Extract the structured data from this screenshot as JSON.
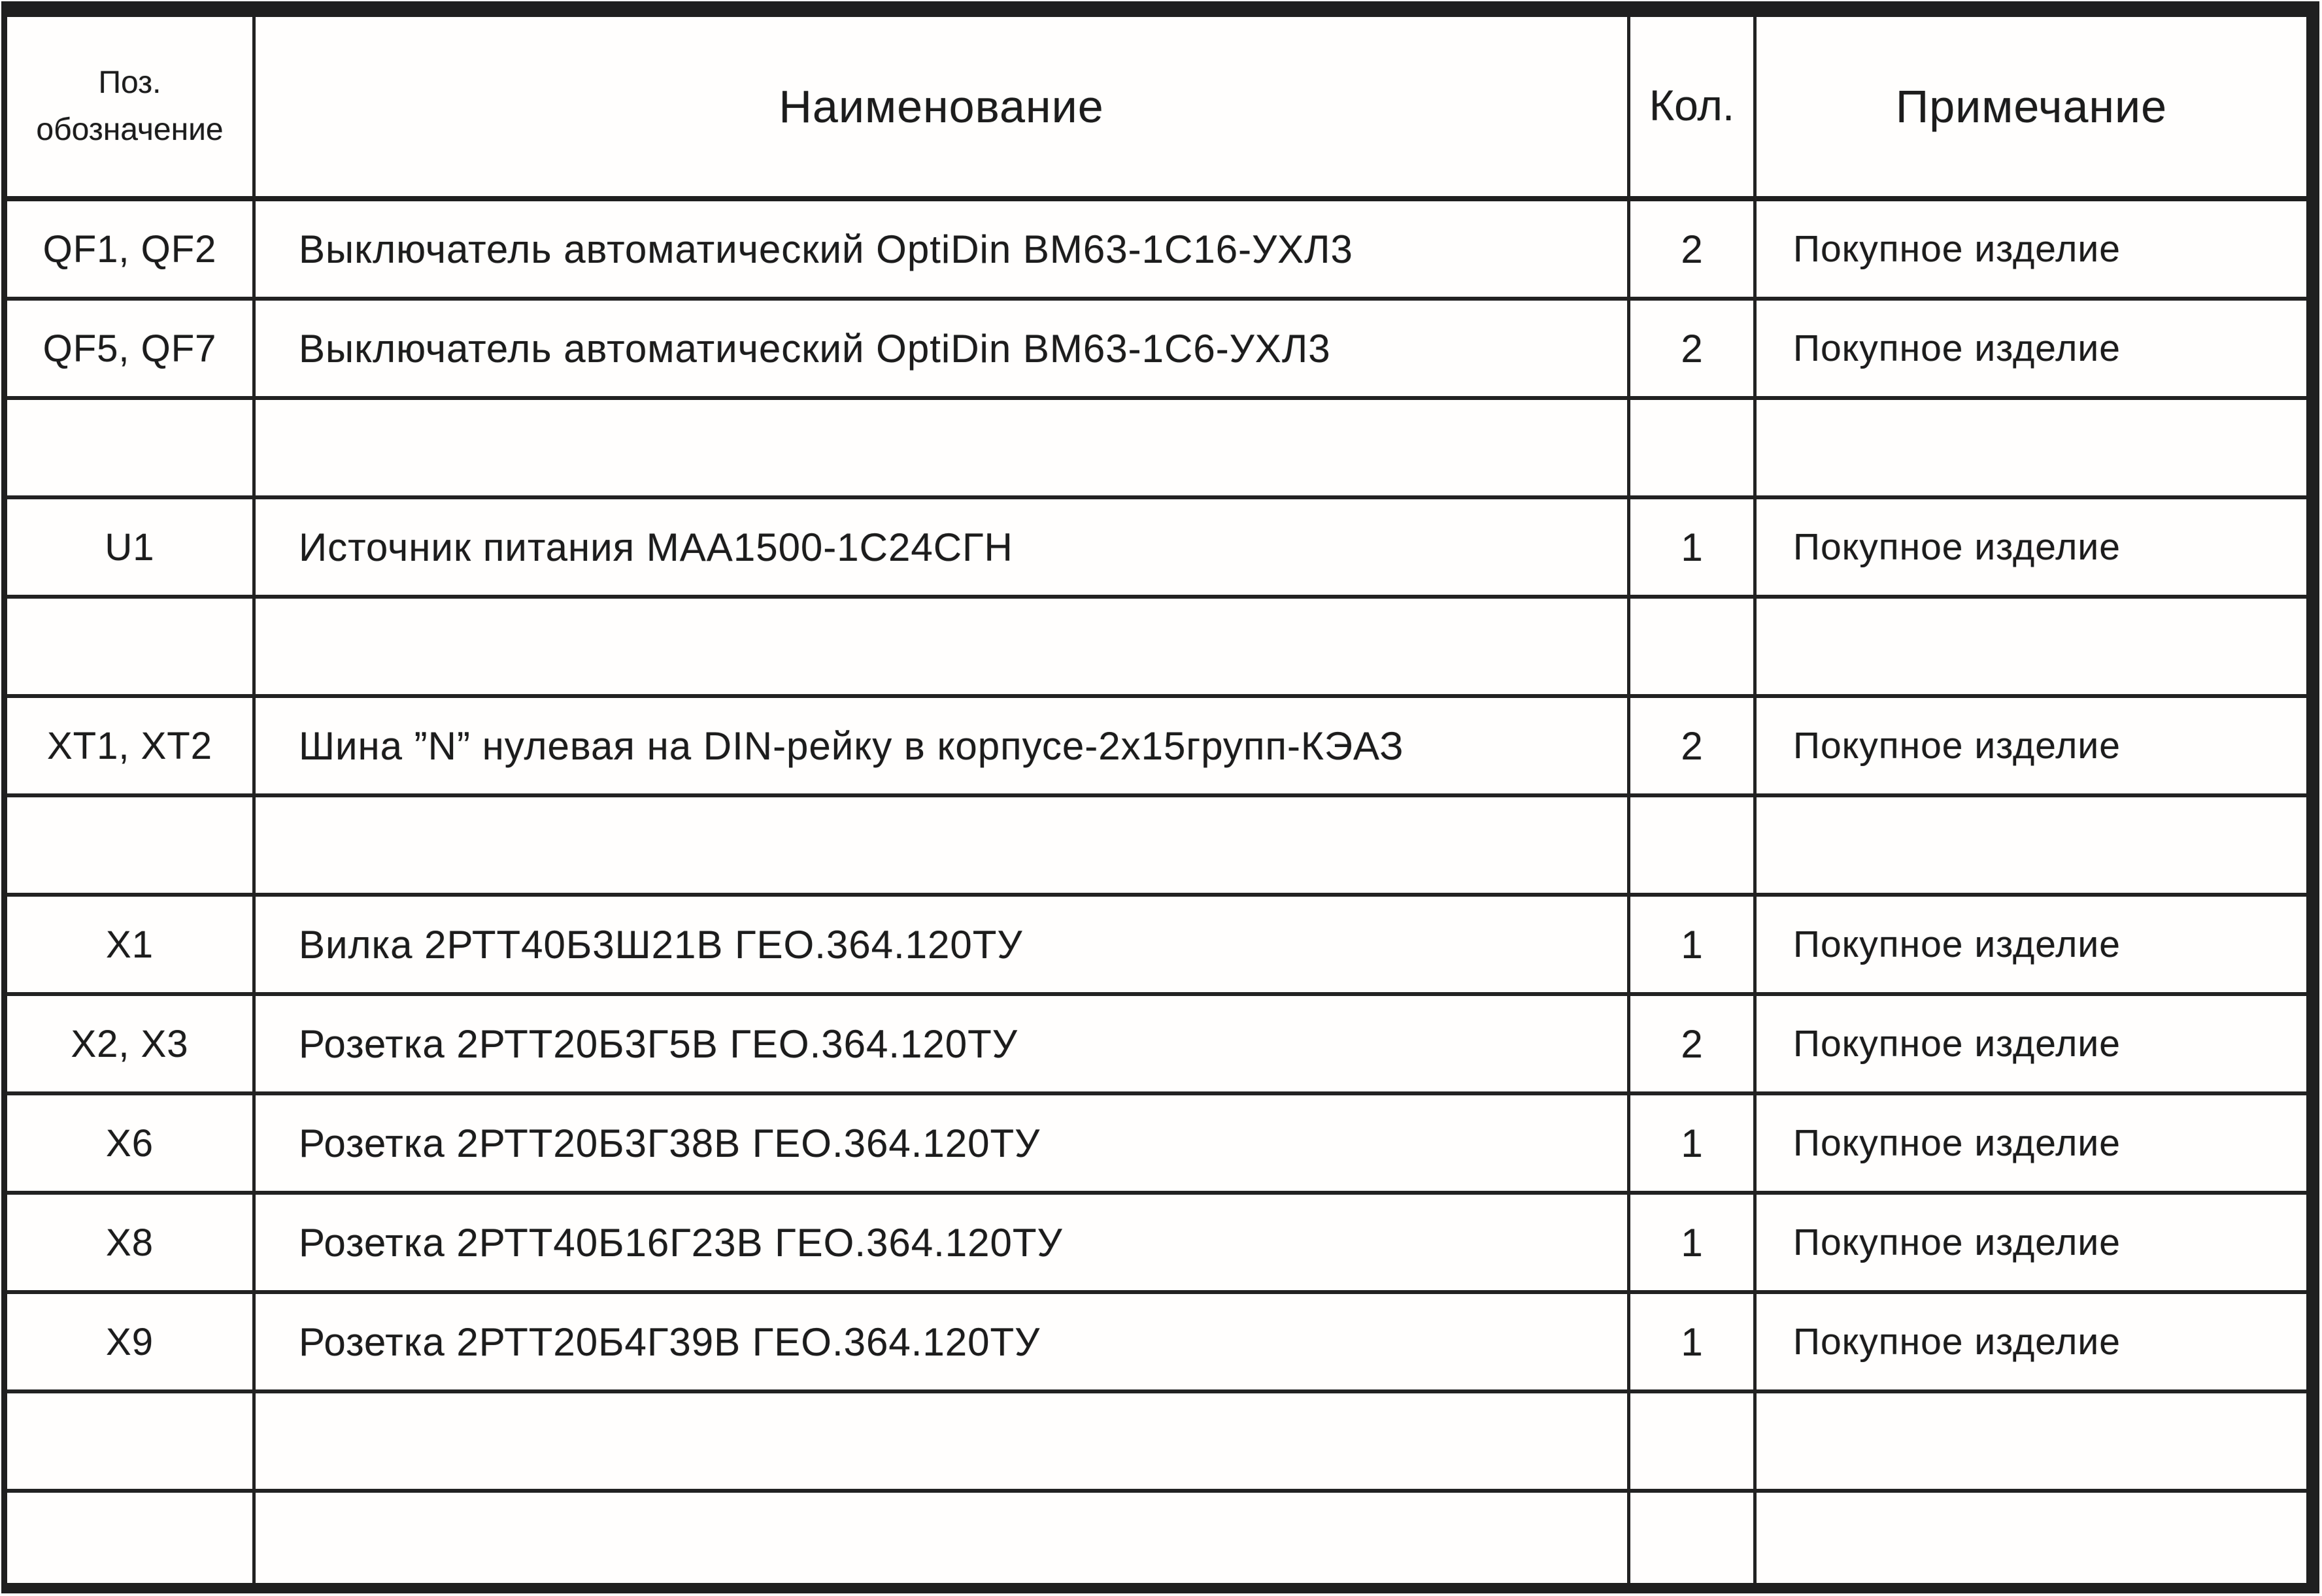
{
  "table": {
    "header": {
      "pos_line1": "Поз.",
      "pos_line2": "обозначение",
      "name": "Наименование",
      "qty": "Кол.",
      "note": "Примечание"
    },
    "rows": [
      {
        "pos": "QF1, QF2",
        "name": "Выключатель автоматический OptiDin ВМ63-1С16-УХЛ3",
        "qty": "2",
        "note": "Покупное изделие"
      },
      {
        "pos": "QF5, QF7",
        "name": "Выключатель автоматический OptiDin ВМ63-1С6-УХЛ3",
        "qty": "2",
        "note": "Покупное изделие"
      },
      {
        "pos": "",
        "name": "",
        "qty": "",
        "note": ""
      },
      {
        "pos": "U1",
        "name": "Источник питания МАА1500-1С24СГН",
        "qty": "1",
        "note": "Покупное изделие"
      },
      {
        "pos": "",
        "name": "",
        "qty": "",
        "note": ""
      },
      {
        "pos": "XT1, XT2",
        "name": "Шина ”N” нулевая на DIN-рейку в корпусе-2х15групп-КЭАЗ",
        "qty": "2",
        "note": "Покупное изделие"
      },
      {
        "pos": "",
        "name": "",
        "qty": "",
        "note": ""
      },
      {
        "pos": "X1",
        "name": "Вилка 2РТТ40Б3Ш21В ГЕО.364.120ТУ",
        "qty": "1",
        "note": "Покупное изделие"
      },
      {
        "pos": "X2, X3",
        "name": "Розетка 2РТТ20Б3Г5В ГЕО.364.120ТУ",
        "qty": "2",
        "note": "Покупное изделие"
      },
      {
        "pos": "X6",
        "name": "Розетка 2РТТ20Б3Г38В ГЕО.364.120ТУ",
        "qty": "1",
        "note": "Покупное изделие"
      },
      {
        "pos": "X8",
        "name": "Розетка 2РТТ40Б16Г23В ГЕО.364.120ТУ",
        "qty": "1",
        "note": "Покупное изделие"
      },
      {
        "pos": "X9",
        "name": "Розетка 2РТТ20Б4Г39В ГЕО.364.120ТУ",
        "qty": "1",
        "note": "Покупное изделие"
      },
      {
        "pos": "",
        "name": "",
        "qty": "",
        "note": ""
      },
      {
        "pos": "",
        "name": "",
        "qty": "",
        "note": ""
      }
    ],
    "colors": {
      "line": "#1f1f1f",
      "ink": "#1c1c1c",
      "paper": "#ffffff"
    }
  }
}
